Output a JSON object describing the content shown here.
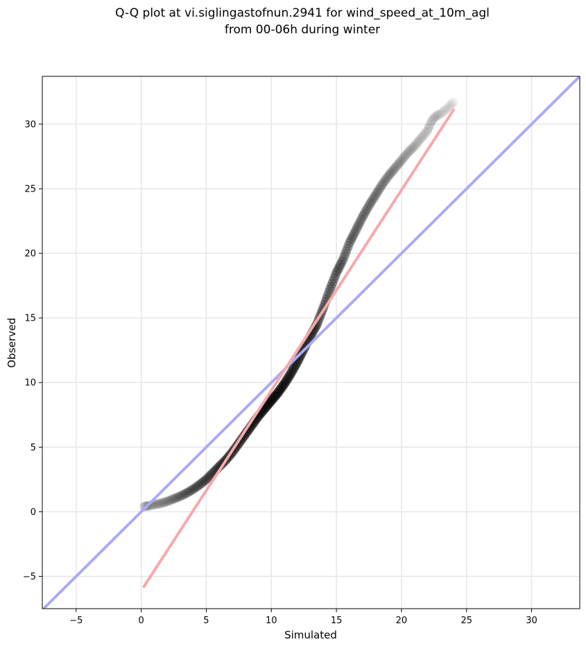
{
  "chart_data": {
    "type": "scatter",
    "title_line1": "Q-Q plot at vi.siglingastofnun.2941 for wind_speed_at_10m_agl",
    "title_line2": "from 00-06h during winter",
    "xlabel": "Simulated",
    "ylabel": "Observed",
    "xlim": [
      -7.6,
      33.7
    ],
    "ylim": [
      -7.5,
      33.7
    ],
    "xticks": [
      -5,
      0,
      5,
      10,
      15,
      20,
      25,
      30
    ],
    "yticks": [
      -5,
      0,
      5,
      10,
      15,
      20,
      25,
      30
    ],
    "xtick_labels": [
      "−5",
      "0",
      "5",
      "10",
      "15",
      "20",
      "25",
      "30"
    ],
    "ytick_labels": [
      "−5",
      "0",
      "5",
      "10",
      "15",
      "20",
      "25",
      "30"
    ],
    "grid": true,
    "colors": {
      "points": "#000000",
      "identity_line": "#aaaaf5",
      "fit_line": "#f7a8ab"
    },
    "identity_line": {
      "x": [
        -7.6,
        33.7
      ],
      "y": [
        -7.6,
        33.7
      ]
    },
    "fit_line": {
      "x": [
        0.2,
        24.0
      ],
      "y": [
        -5.8,
        31.1
      ]
    },
    "quantiles": {
      "x": [
        0.2,
        0.5,
        1.0,
        1.5,
        2.0,
        2.5,
        3.0,
        3.5,
        4.0,
        4.5,
        5.0,
        5.5,
        6.0,
        6.5,
        7.0,
        7.5,
        8.0,
        8.5,
        9.0,
        9.5,
        10.0,
        10.5,
        11.0,
        11.5,
        12.0,
        12.5,
        13.0,
        13.5,
        14.0,
        14.5,
        15.0,
        15.5,
        16.0,
        16.5,
        17.0,
        17.5,
        18.0,
        18.5,
        19.0,
        19.5,
        20.0,
        20.5,
        21.0,
        21.5,
        22.0,
        22.3,
        22.6,
        23.0,
        23.5,
        24.0
      ],
      "y": [
        0.4,
        0.45,
        0.55,
        0.65,
        0.8,
        1.0,
        1.2,
        1.45,
        1.75,
        2.1,
        2.5,
        3.0,
        3.5,
        4.0,
        4.6,
        5.3,
        6.0,
        6.7,
        7.4,
        8.0,
        8.6,
        9.2,
        9.9,
        10.7,
        11.6,
        12.6,
        13.6,
        14.5,
        15.8,
        17.2,
        18.5,
        19.5,
        20.8,
        21.8,
        22.8,
        23.7,
        24.5,
        25.3,
        26.0,
        26.6,
        27.2,
        27.8,
        28.3,
        28.9,
        29.5,
        30.2,
        30.6,
        30.8,
        31.2,
        31.7
      ],
      "alpha": [
        0.12,
        0.14,
        0.16,
        0.18,
        0.2,
        0.24,
        0.28,
        0.32,
        0.36,
        0.4,
        0.45,
        0.5,
        0.55,
        0.6,
        0.65,
        0.7,
        0.75,
        0.8,
        0.85,
        0.9,
        0.92,
        0.92,
        0.9,
        0.88,
        0.85,
        0.82,
        0.78,
        0.74,
        0.7,
        0.66,
        0.62,
        0.58,
        0.54,
        0.5,
        0.46,
        0.42,
        0.38,
        0.34,
        0.3,
        0.26,
        0.22,
        0.19,
        0.16,
        0.14,
        0.12,
        0.1,
        0.09,
        0.08,
        0.08,
        0.08
      ]
    }
  }
}
